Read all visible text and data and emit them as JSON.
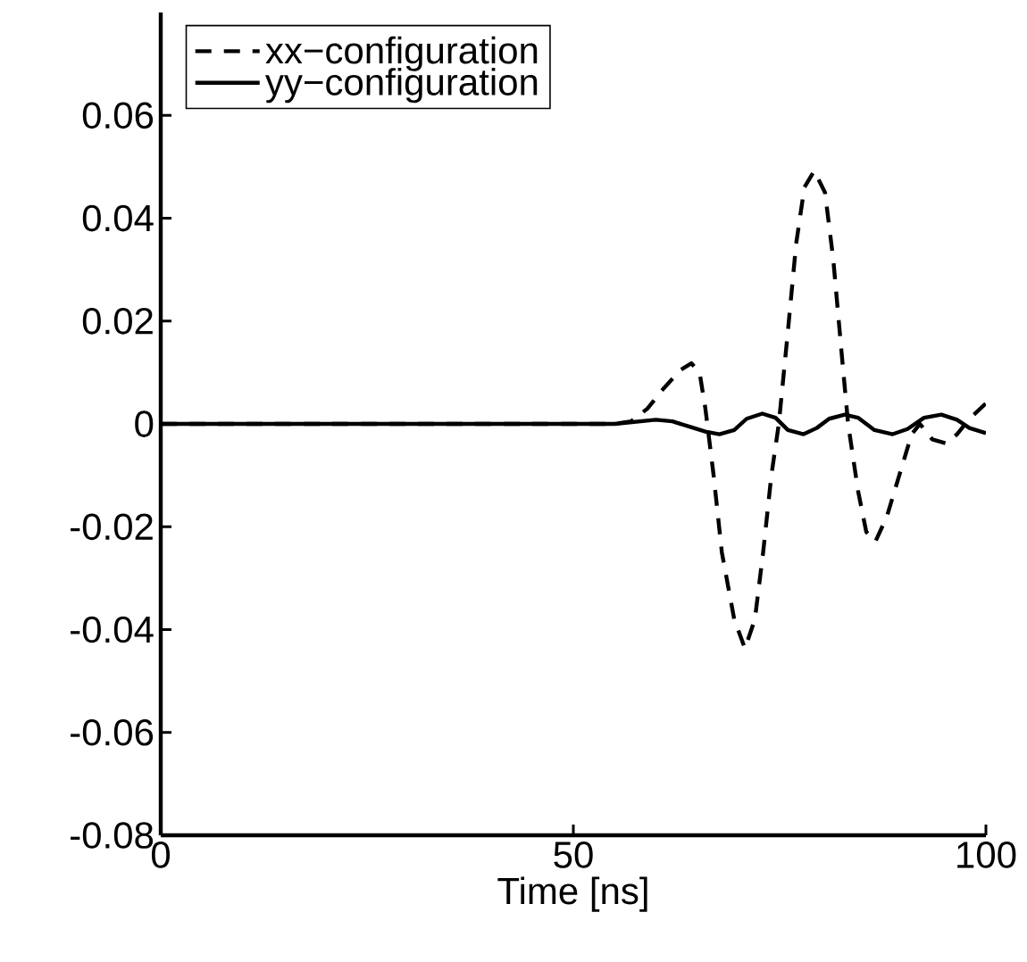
{
  "chart_data": {
    "type": "line",
    "xlabel": "Time [ns]",
    "xlim": [
      0,
      100
    ],
    "xticks": [
      0,
      50,
      100
    ],
    "ylim": [
      -0.08,
      0.08
    ],
    "yticks": [
      -0.08,
      -0.06,
      -0.04,
      -0.02,
      0,
      0.02,
      0.04,
      0.06
    ],
    "legend": "top left",
    "grid": false,
    "marker": "none",
    "series": [
      {
        "name": "xx−configuration",
        "color": "#000000",
        "line_style": "dashed",
        "x": [
          0,
          50,
          55,
          57,
          59,
          61,
          63,
          64.3,
          65.3,
          66,
          67,
          68,
          69.5,
          70.8,
          72,
          73,
          74,
          74.9,
          76,
          77,
          78,
          79.2,
          80.5,
          81.5,
          82.5,
          83.3,
          84.5,
          85.5,
          86.6,
          88,
          89.5,
          91,
          92,
          93.5,
          95.2,
          96.5,
          98,
          100
        ],
        "values": [
          0,
          0,
          0,
          0.0005,
          0.003,
          0.007,
          0.0105,
          0.0118,
          0.01,
          0.003,
          -0.01,
          -0.025,
          -0.038,
          -0.0437,
          -0.038,
          -0.025,
          -0.01,
          0,
          0.018,
          0.035,
          0.046,
          0.0492,
          0.045,
          0.032,
          0.014,
          0,
          -0.013,
          -0.021,
          -0.0229,
          -0.018,
          -0.01,
          -0.002,
          0,
          -0.003,
          -0.0038,
          -0.002,
          0.001,
          0.004
        ]
      },
      {
        "name": "yy−configuration",
        "color": "#000000",
        "line_style": "solid",
        "x": [
          0,
          55,
          60,
          62,
          64,
          66,
          67.7,
          69.5,
          71,
          72.9,
          74.5,
          76,
          77.9,
          79.5,
          81,
          82.9,
          84.5,
          86.5,
          88.7,
          90.5,
          92.5,
          94.6,
          96.5,
          98,
          100
        ],
        "values": [
          0,
          0,
          0.0008,
          0.0005,
          -0.0005,
          -0.0015,
          -0.002,
          -0.0012,
          0.001,
          0.002,
          0.0012,
          -0.0012,
          -0.002,
          -0.0008,
          0.001,
          0.0018,
          0.0012,
          -0.0012,
          -0.002,
          -0.001,
          0.0012,
          0.0018,
          0.0008,
          -0.0008,
          -0.0018
        ]
      }
    ]
  }
}
